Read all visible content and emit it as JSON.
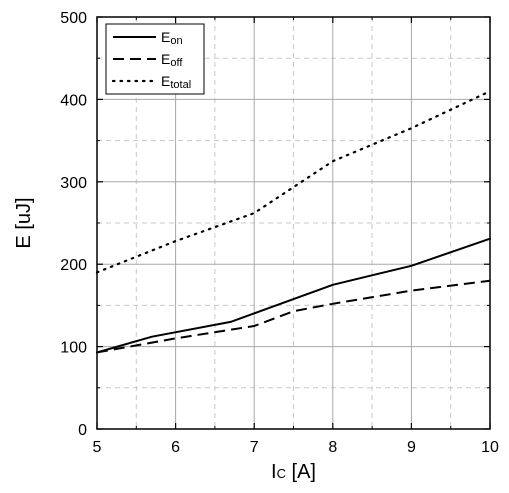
{
  "chart_data": {
    "type": "line",
    "xlabel": {
      "main": "I",
      "sub": "C",
      "rest": " [A]"
    },
    "ylabel": "E [uJ]",
    "xlim": [
      5,
      10
    ],
    "ylim": [
      0,
      500
    ],
    "xticks": [
      5,
      6,
      7,
      8,
      9,
      10
    ],
    "yticks": [
      0,
      100,
      200,
      300,
      400,
      500
    ],
    "x_minor_step": 0.5,
    "y_minor_step": 50,
    "grid": true,
    "legend_position": "top-left",
    "series": [
      {
        "name": {
          "main": "E",
          "sub": "on"
        },
        "style": "solid",
        "x": [
          5,
          5.7,
          6.7,
          8,
          9,
          10
        ],
        "y": [
          93,
          112,
          130,
          175,
          198,
          231
        ]
      },
      {
        "name": {
          "main": "E",
          "sub": "off"
        },
        "style": "dashed",
        "x": [
          5,
          6,
          7,
          7.5,
          8,
          9,
          10
        ],
        "y": [
          93,
          110,
          125,
          143,
          152,
          168,
          180
        ]
      },
      {
        "name": {
          "main": "E",
          "sub": "total"
        },
        "style": "dotted",
        "x": [
          5,
          6,
          7,
          8,
          9,
          10
        ],
        "y": [
          190,
          228,
          262,
          325,
          365,
          410
        ]
      }
    ]
  }
}
